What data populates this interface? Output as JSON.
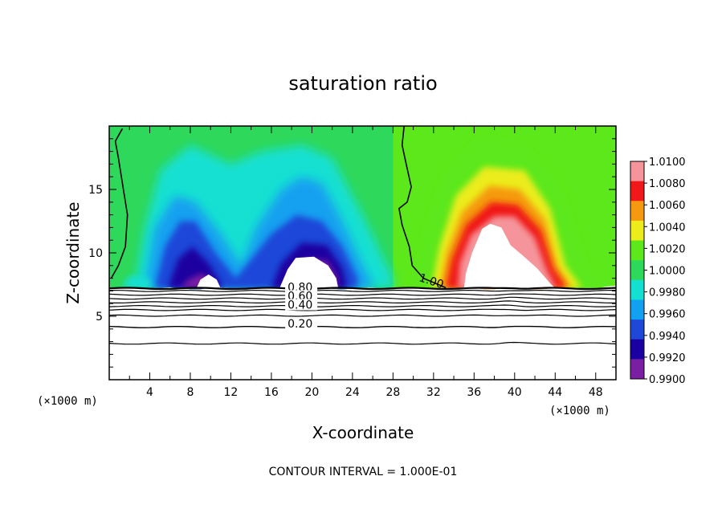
{
  "chart_data": {
    "type": "heatmap",
    "title": "saturation ratio",
    "xlabel": "X-coordinate",
    "ylabel": "Z-coordinate",
    "x_unit": "(×1000 m)",
    "y_unit": "(×1000 m)",
    "xlim": [
      0,
      50
    ],
    "ylim": [
      0,
      20
    ],
    "x_ticks": [
      4,
      8,
      12,
      16,
      20,
      24,
      28,
      32,
      36,
      40,
      44,
      48
    ],
    "y_ticks": [
      5,
      10,
      15
    ],
    "x_tick_labels": [
      "4",
      "8",
      "12",
      "16",
      "20",
      "24",
      "28",
      "32",
      "36",
      "40",
      "44",
      "48"
    ],
    "y_tick_labels": [
      "5",
      "10",
      "15"
    ],
    "colorbar": {
      "min": 0.99,
      "max": 1.01,
      "levels": [
        "1.0100",
        "1.0080",
        "1.0060",
        "1.0040",
        "1.0020",
        "1.0000",
        "0.9980",
        "0.9960",
        "0.9940",
        "0.9920",
        "0.9900"
      ],
      "colors": [
        "#7b1fa2",
        "#1a00a0",
        "#1f47d8",
        "#12a0f0",
        "#14e0d2",
        "#2ed85a",
        "#5ce81a",
        "#ecec1a",
        "#f59a10",
        "#f01818",
        "#f5959b"
      ]
    },
    "contour_labels": [
      {
        "text": "1.00",
        "x": 30.5,
        "y": 7.8
      },
      {
        "text": "0.80",
        "x": 17.6,
        "y": 7.0
      },
      {
        "text": "0.60",
        "x": 17.6,
        "y": 6.3
      },
      {
        "text": "0.40",
        "x": 17.6,
        "y": 5.6
      },
      {
        "text": "0.20",
        "x": 17.6,
        "y": 4.1
      }
    ],
    "contour_interval_text": "CONTOUR INTERVAL = 1.000E-01",
    "features": {
      "dry_blobs_x": [
        9.5,
        19.5,
        23
      ],
      "moist_plume_x": 38.5,
      "cloud_top_z": 12.3,
      "surface_z": 7.2
    }
  }
}
